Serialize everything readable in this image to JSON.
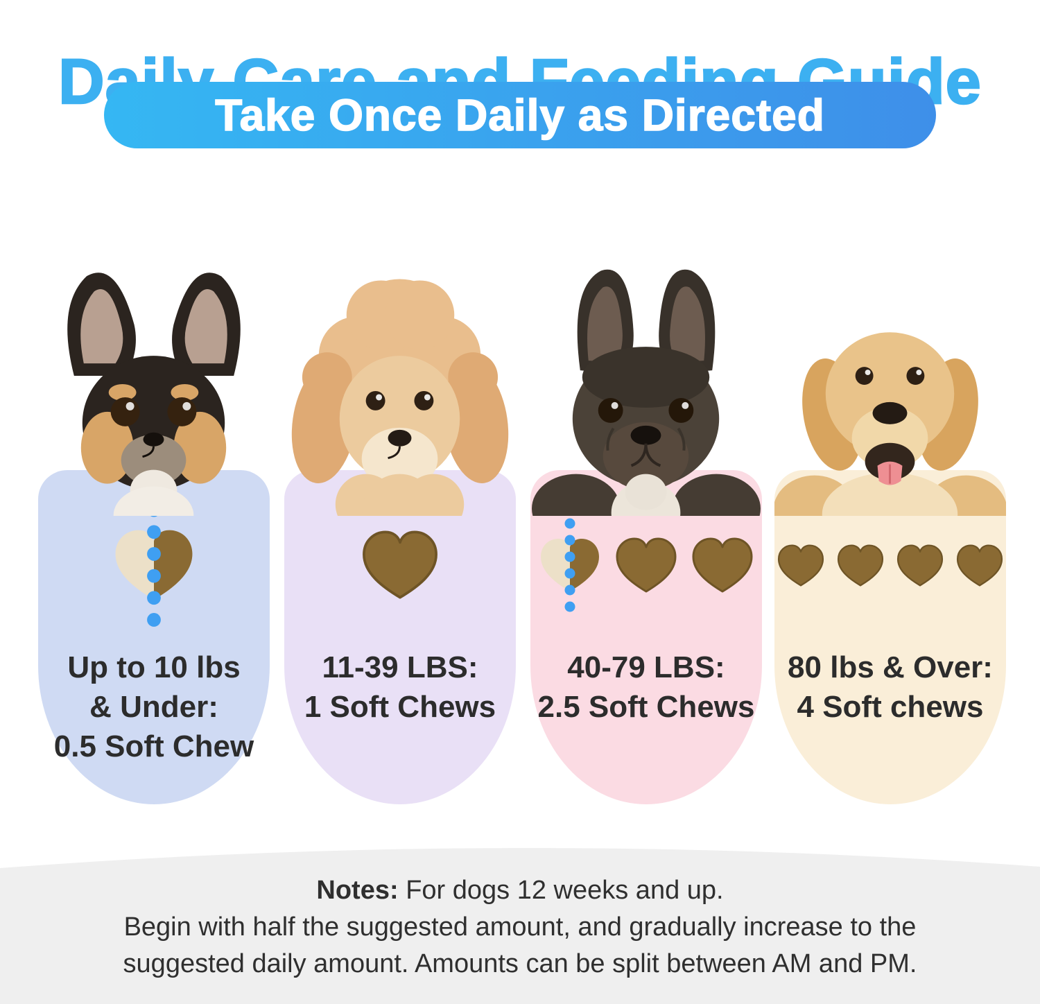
{
  "title": {
    "text": "Daily Care and Feeding Guide",
    "color": "#3cb0f1"
  },
  "banner": {
    "text": "Take Once Daily as Directed",
    "gradient_start": "#35b7f3",
    "gradient_end": "#3e8fe9",
    "text_color": "#ffffff"
  },
  "columns": [
    {
      "breed": "chihuahua",
      "pill_color": "#cfdaf3",
      "chews": [
        "half"
      ],
      "dose_lines": [
        "Up to 10 lbs",
        "& Under:",
        "0.5 Soft Chew"
      ]
    },
    {
      "breed": "poodle",
      "pill_color": "#e9e0f6",
      "chews": [
        "full"
      ],
      "dose_lines": [
        "11-39 LBS:",
        "1 Soft Chews"
      ]
    },
    {
      "breed": "french-bulldog",
      "pill_color": "#fbdbe3",
      "chews": [
        "half",
        "full",
        "full"
      ],
      "dose_lines": [
        "40-79 LBS:",
        "2.5 Soft Chews"
      ]
    },
    {
      "breed": "golden-retriever",
      "pill_color": "#faeed8",
      "chews": [
        "full",
        "full",
        "full",
        "full"
      ],
      "dose_lines": [
        "80 lbs & Over:",
        "4 Soft chews"
      ]
    }
  ],
  "chew_colors": {
    "brown": "#8a6a33",
    "brown_dark": "#6e5426",
    "ghost": "#ece0c8",
    "dot_blue": "#3f9ff2"
  },
  "notes": {
    "bold_prefix": "Notes:",
    "line1_rest": " For dogs 12 weeks and up.",
    "line2": "Begin with half the suggested amount, and gradually increase to the",
    "line3": "suggested daily amount. Amounts can be split between AM and PM.",
    "bg_color": "#efefef",
    "text_color": "#2f2f2f"
  }
}
